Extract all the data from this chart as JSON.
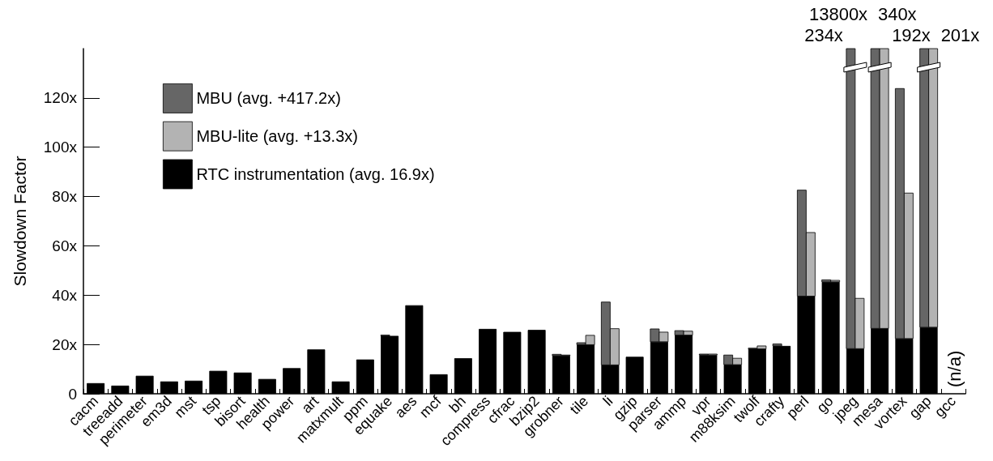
{
  "chart_data": {
    "type": "bar",
    "ylabel": "Slowdown Factor",
    "categories": [
      "cacm",
      "treeadd",
      "perimeter",
      "em3d",
      "mst",
      "tsp",
      "bisort",
      "health",
      "power",
      "art",
      "matxmult",
      "ppm",
      "equake",
      "aes",
      "mcf",
      "bh",
      "compress",
      "cfrac",
      "bzip2",
      "grobner",
      "tile",
      "li",
      "gzip",
      "parser",
      "ammp",
      "vpr",
      "m88ksim",
      "twolf",
      "crafty",
      "perl",
      "go",
      "jpeg",
      "mesa",
      "vortex",
      "gap",
      "gcc"
    ],
    "series": [
      {
        "name": "RTC instrumentation (avg. 16.9x)",
        "color": "#000000",
        "values": [
          4.3,
          3.3,
          7.3,
          5.0,
          5.3,
          9.3,
          8.6,
          6.0,
          10.4,
          18.0,
          5.0,
          13.9,
          23.5,
          35.9,
          7.9,
          14.4,
          26.3,
          25.1,
          25.9,
          15.5,
          19.9,
          11.7,
          15.0,
          21.1,
          23.8,
          15.7,
          11.8,
          18.2,
          19.4,
          39.6,
          45.4,
          18.3,
          26.5,
          22.4,
          27.0,
          null
        ]
      },
      {
        "name": "MBU (avg. +417.2x)",
        "color": "#666666",
        "values": [
          null,
          null,
          null,
          null,
          null,
          null,
          null,
          null,
          null,
          null,
          null,
          null,
          0.3,
          null,
          null,
          null,
          null,
          null,
          null,
          0.5,
          0.8,
          25.5,
          null,
          5.2,
          1.8,
          0.4,
          3.9,
          0.3,
          0.8,
          43.0,
          0.8,
          215.7,
          13773.5,
          101.4,
          313,
          null
        ],
        "base": [
          null,
          null,
          null,
          null,
          null,
          null,
          null,
          null,
          null,
          null,
          null,
          null,
          23.5,
          null,
          null,
          null,
          null,
          null,
          null,
          15.5,
          19.9,
          11.7,
          null,
          21.1,
          23.8,
          15.7,
          11.8,
          18.2,
          19.4,
          39.6,
          45.4,
          18.3,
          26.5,
          22.4,
          27.0,
          null
        ]
      },
      {
        "name": "MBU-lite (avg. +13.3x)",
        "color": "#b3b3b3",
        "values": [
          null,
          null,
          null,
          null,
          null,
          null,
          null,
          null,
          null,
          null,
          null,
          null,
          null,
          null,
          null,
          null,
          null,
          null,
          null,
          0.2,
          3.8,
          14.7,
          null,
          3.9,
          1.6,
          0.4,
          2.6,
          1.2,
          null,
          25.8,
          0.6,
          20.4,
          165.5,
          59.0,
          174,
          null
        ],
        "base": [
          null,
          null,
          null,
          null,
          null,
          null,
          null,
          null,
          null,
          null,
          null,
          null,
          null,
          null,
          null,
          null,
          null,
          null,
          null,
          15.5,
          19.9,
          11.7,
          null,
          21.1,
          23.8,
          15.7,
          11.8,
          18.2,
          null,
          39.6,
          45.4,
          18.3,
          26.5,
          22.4,
          27.0,
          null
        ]
      }
    ],
    "ylim": [
      0,
      140
    ],
    "yticks": [
      {
        "value": 0,
        "label": "0"
      },
      {
        "value": 20,
        "label": "20x"
      },
      {
        "value": 40,
        "label": "40x"
      },
      {
        "value": 60,
        "label": "60x"
      },
      {
        "value": 80,
        "label": "80x"
      },
      {
        "value": 100,
        "label": "100x"
      },
      {
        "value": 120,
        "label": "120x"
      }
    ],
    "annotations": [
      "234x",
      "13800x",
      "192x",
      "340x",
      "201x",
      "(n/a)"
    ],
    "grid": false,
    "legend": "top left"
  }
}
